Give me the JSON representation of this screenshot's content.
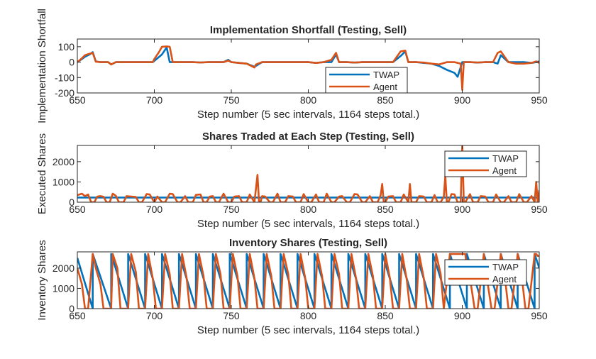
{
  "colors": {
    "twap": "#0072BD",
    "agent": "#D95319",
    "axis": "#262626",
    "background": "#ffffff"
  },
  "chart_data": [
    {
      "type": "line",
      "title": "Implementation Shortfall (Testing, Sell)",
      "xlabel": "Step number (5 sec intervals, 1164 steps total.)",
      "ylabel": "Implementation Shortfall",
      "xlim": [
        650,
        950
      ],
      "ylim": [
        -200,
        150
      ],
      "xticks": [
        650,
        700,
        750,
        800,
        850,
        900,
        950
      ],
      "yticks": [
        -200,
        -100,
        0,
        100
      ],
      "grid": false,
      "legend": "bottom-right",
      "series": [
        {
          "name": "TWAP",
          "color": "#0072BD",
          "x": [
            650,
            653,
            655,
            658,
            660,
            662,
            665,
            670,
            672,
            675,
            680,
            690,
            699,
            705,
            708,
            710,
            715,
            720,
            725,
            730,
            735,
            740,
            745,
            748,
            750,
            755,
            760,
            765,
            770,
            780,
            790,
            800,
            805,
            810,
            815,
            818,
            820,
            825,
            830,
            835,
            840,
            845,
            850,
            855,
            860,
            863,
            865,
            870,
            875,
            880,
            885,
            890,
            895,
            897,
            900,
            901,
            905,
            910,
            915,
            920,
            923,
            925,
            930,
            935,
            940,
            945,
            948,
            950
          ],
          "y": [
            0,
            20,
            35,
            50,
            65,
            5,
            0,
            0,
            -15,
            0,
            0,
            0,
            0,
            50,
            95,
            0,
            0,
            0,
            0,
            -2,
            0,
            0,
            0,
            15,
            0,
            -5,
            -10,
            -30,
            0,
            0,
            0,
            0,
            -5,
            0,
            0,
            50,
            0,
            0,
            -3,
            0,
            0,
            0,
            0,
            0,
            40,
            70,
            0,
            0,
            -5,
            -10,
            -25,
            -50,
            -70,
            -95,
            0,
            0,
            0,
            -3,
            0,
            0,
            -10,
            45,
            0,
            0,
            0,
            -5,
            0,
            5
          ]
        },
        {
          "name": "Agent",
          "color": "#D95319",
          "x": [
            650,
            653,
            655,
            658,
            660,
            662,
            665,
            670,
            672,
            675,
            680,
            690,
            699,
            700,
            703,
            705,
            708,
            710,
            712,
            715,
            720,
            725,
            730,
            735,
            740,
            745,
            748,
            750,
            755,
            760,
            765,
            766,
            770,
            780,
            790,
            800,
            805,
            810,
            815,
            818,
            820,
            825,
            830,
            835,
            840,
            845,
            850,
            855,
            860,
            863,
            865,
            870,
            875,
            880,
            885,
            890,
            895,
            899,
            900,
            901,
            902,
            905,
            910,
            915,
            920,
            923,
            925,
            930,
            935,
            940,
            945,
            948,
            950
          ],
          "y": [
            0,
            25,
            45,
            55,
            60,
            3,
            0,
            0,
            -15,
            0,
            0,
            0,
            0,
            20,
            65,
            100,
            102,
            100,
            0,
            0,
            0,
            0,
            -3,
            0,
            0,
            0,
            10,
            0,
            -5,
            -10,
            -35,
            -15,
            0,
            0,
            0,
            0,
            -5,
            0,
            15,
            60,
            0,
            0,
            -3,
            0,
            0,
            0,
            0,
            0,
            70,
            75,
            0,
            0,
            -3,
            -10,
            -15,
            0,
            0,
            -10,
            -180,
            0,
            0,
            0,
            -3,
            0,
            0,
            60,
            70,
            0,
            -10,
            -10,
            -5,
            5,
            -5
          ]
        }
      ]
    },
    {
      "type": "line",
      "title": "Shares Traded at Each Step (Testing, Sell)",
      "xlabel": "Step number (5 sec intervals, 1164 steps total.)",
      "ylabel": "Executed Shares",
      "xlim": [
        650,
        950
      ],
      "ylim": [
        0,
        2800
      ],
      "xticks": [
        650,
        700,
        750,
        800,
        850,
        900,
        950
      ],
      "yticks": [
        0,
        1000,
        2000
      ],
      "grid": false,
      "legend": "top-right",
      "series": [
        {
          "name": "TWAP",
          "color": "#0072BD",
          "x": [
            650,
            950
          ],
          "y": [
            230,
            230
          ]
        },
        {
          "name": "Agent",
          "color": "#D95319",
          "x": [
            650,
            653,
            655,
            657,
            659,
            661,
            663,
            665,
            667,
            669,
            671,
            673,
            675,
            677,
            680,
            682,
            685,
            688,
            690,
            692,
            695,
            697,
            700,
            702,
            705,
            707,
            710,
            712,
            715,
            717,
            720,
            722,
            725,
            727,
            730,
            732,
            734,
            736,
            738,
            740,
            742,
            745,
            748,
            750,
            752,
            755,
            757,
            760,
            762,
            765,
            767,
            768,
            769,
            770,
            772,
            775,
            777,
            780,
            782,
            785,
            787,
            790,
            792,
            795,
            797,
            800,
            802,
            805,
            807,
            810,
            812,
            815,
            817,
            820,
            822,
            825,
            827,
            830,
            832,
            835,
            837,
            840,
            842,
            845,
            847,
            848,
            849,
            850,
            852,
            855,
            857,
            860,
            862,
            865,
            866,
            867,
            870,
            872,
            875,
            877,
            880,
            882,
            884,
            886,
            888,
            889,
            890,
            891,
            893,
            895,
            897,
            899,
            900,
            901,
            902,
            905,
            907,
            910,
            912,
            915,
            917,
            920,
            922,
            925,
            927,
            930,
            932,
            935,
            937,
            940,
            942,
            945,
            947,
            948,
            949,
            950
          ],
          "y": [
            350,
            420,
            300,
            380,
            0,
            0,
            280,
            300,
            270,
            0,
            0,
            420,
            320,
            0,
            0,
            300,
            280,
            260,
            0,
            0,
            400,
            380,
            0,
            280,
            0,
            0,
            420,
            400,
            0,
            0,
            300,
            0,
            0,
            360,
            380,
            0,
            0,
            280,
            300,
            0,
            0,
            420,
            0,
            0,
            280,
            300,
            0,
            0,
            380,
            0,
            1350,
            0,
            0,
            300,
            280,
            0,
            0,
            420,
            0,
            0,
            300,
            280,
            0,
            0,
            400,
            0,
            0,
            380,
            0,
            0,
            420,
            0,
            0,
            280,
            300,
            0,
            0,
            400,
            380,
            0,
            0,
            300,
            0,
            0,
            350,
            900,
            0,
            0,
            280,
            300,
            0,
            0,
            380,
            0,
            900,
            0,
            0,
            300,
            280,
            0,
            0,
            350,
            0,
            0,
            280,
            1300,
            0,
            0,
            400,
            380,
            0,
            0,
            2800,
            0,
            0,
            400,
            0,
            0,
            300,
            280,
            0,
            0,
            380,
            0,
            0,
            300,
            0,
            0,
            400,
            0,
            0,
            300,
            0,
            1000,
            0,
            600
          ]
        }
      ]
    },
    {
      "type": "line",
      "title": "Inventory Shares (Testing, Sell)",
      "xlabel": "Step number (5 sec intervals, 1164 steps total.)",
      "ylabel": "Inventory Shares",
      "xlim": [
        650,
        950
      ],
      "ylim": [
        0,
        2800
      ],
      "xticks": [
        650,
        700,
        750,
        800,
        850,
        900,
        950
      ],
      "yticks": [
        0,
        1000,
        2000
      ],
      "grid": false,
      "legend": "top-right",
      "series": [
        {
          "name": "TWAP",
          "color": "#0072BD",
          "x": [
            650,
            660,
            660,
            672,
            672,
            683,
            683,
            694,
            694,
            705,
            705,
            716,
            716,
            727,
            727,
            738,
            738,
            749,
            749,
            760,
            760,
            771,
            771,
            782,
            782,
            793,
            793,
            804,
            804,
            815,
            815,
            826,
            826,
            837,
            837,
            848,
            848,
            859,
            859,
            870,
            870,
            881,
            881,
            892,
            892,
            903,
            903,
            914,
            914,
            925,
            925,
            936,
            936,
            947,
            947,
            950
          ],
          "y": [
            2500,
            0,
            2700,
            0,
            2700,
            0,
            2700,
            0,
            2700,
            0,
            2700,
            0,
            2700,
            0,
            2700,
            0,
            2700,
            0,
            2700,
            0,
            2700,
            0,
            2700,
            0,
            2700,
            0,
            2700,
            0,
            2700,
            0,
            2700,
            0,
            2700,
            0,
            2700,
            0,
            2700,
            0,
            2700,
            0,
            2700,
            0,
            2700,
            0,
            2700,
            0,
            2700,
            0,
            2700,
            0,
            2700,
            0,
            2700,
            0,
            2700,
            2000
          ]
        },
        {
          "name": "Agent",
          "color": "#D95319",
          "x": [
            650,
            653,
            655,
            657,
            660,
            662,
            665,
            667,
            672,
            673,
            676,
            678,
            683,
            685,
            688,
            690,
            694,
            696,
            699,
            701,
            705,
            707,
            710,
            712,
            716,
            718,
            721,
            723,
            727,
            729,
            732,
            734,
            738,
            740,
            743,
            745,
            749,
            751,
            754,
            756,
            760,
            762,
            765,
            767,
            771,
            773,
            776,
            778,
            782,
            784,
            787,
            789,
            793,
            795,
            798,
            800,
            804,
            806,
            809,
            811,
            815,
            817,
            820,
            822,
            826,
            828,
            831,
            833,
            837,
            839,
            842,
            844,
            848,
            850,
            853,
            855,
            859,
            861,
            864,
            866,
            870,
            872,
            875,
            877,
            881,
            883,
            886,
            888,
            892,
            893,
            900,
            902,
            903,
            905,
            908,
            910,
            914,
            916,
            919,
            921,
            925,
            927,
            930,
            932,
            936,
            938,
            941,
            943,
            947,
            948,
            949,
            950
          ],
          "y": [
            2000,
            1200,
            0,
            0,
            2700,
            2000,
            1200,
            0,
            0,
            2700,
            2000,
            0,
            0,
            2700,
            1800,
            0,
            0,
            2700,
            1500,
            0,
            0,
            2700,
            1700,
            0,
            0,
            2700,
            1500,
            0,
            0,
            2700,
            1600,
            0,
            0,
            2700,
            1700,
            0,
            0,
            2700,
            1600,
            0,
            0,
            2700,
            1500,
            0,
            0,
            2700,
            1600,
            0,
            0,
            2700,
            1700,
            0,
            0,
            2700,
            1500,
            0,
            0,
            2700,
            1600,
            0,
            0,
            2700,
            1700,
            0,
            0,
            2700,
            1500,
            0,
            0,
            2700,
            1600,
            0,
            0,
            2700,
            1500,
            0,
            0,
            2700,
            1400,
            0,
            0,
            2700,
            1500,
            0,
            0,
            2700,
            1700,
            0,
            2700,
            2700,
            2700,
            2700,
            2000,
            1500,
            0,
            0,
            2700,
            1500,
            0,
            0,
            2700,
            2000,
            0,
            0,
            2700,
            2000,
            0,
            0,
            2700,
            2700,
            2600,
            2600
          ]
        }
      ]
    }
  ]
}
